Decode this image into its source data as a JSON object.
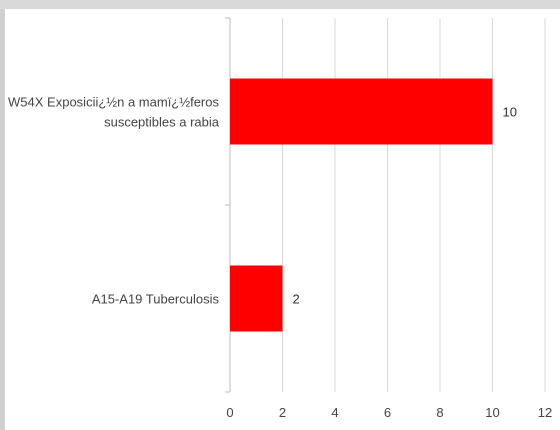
{
  "chart_data": {
    "type": "bar",
    "orientation": "horizontal",
    "categories": [
      "W54X Exposicii¿½n a mamï¿½feros susceptibles a rabia",
      "A15-A19 Tuberculosis"
    ],
    "category_lines": [
      [
        "W54X Exposicii¿½n a mamï¿½feros",
        "susceptibles a rabia"
      ],
      [
        "A15-A19 Tuberculosis"
      ]
    ],
    "values": [
      10,
      2
    ],
    "data_labels": [
      "10",
      "2"
    ],
    "xlim": [
      0,
      12
    ],
    "x_ticks": [
      0,
      2,
      4,
      6,
      8,
      10,
      12
    ],
    "x_tick_labels": [
      "0",
      "2",
      "4",
      "6",
      "8",
      "10",
      "12"
    ],
    "bar_color": "#ff0000",
    "grid": "vertical",
    "legend": "none",
    "title": "",
    "xlabel": "",
    "ylabel": ""
  }
}
